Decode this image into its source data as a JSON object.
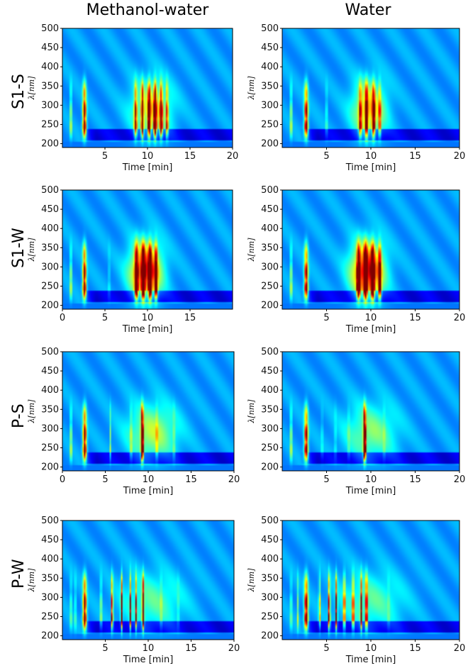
{
  "columns": [
    "Methanol-water",
    "Water"
  ],
  "rows": [
    "S1-S",
    "S1-W",
    "P-S",
    "P-W"
  ],
  "chart_data": [
    {
      "type": "heatmap",
      "row": "S1-S",
      "column": "Methanol-water",
      "xlabel": "Time [min]",
      "ylabel": "λ[nm]",
      "xticks": [
        "5",
        "10",
        "15",
        "20"
      ],
      "yticks": [
        "200",
        "250",
        "300",
        "350",
        "400",
        "450",
        "500"
      ],
      "xlim": [
        0,
        20
      ],
      "ylim": [
        190,
        500
      ],
      "peaks": [
        {
          "t": 1.0,
          "w": 0.06,
          "amp": 0.6
        },
        {
          "t": 2.6,
          "w": 0.15,
          "amp": 0.9
        },
        {
          "t": 8.6,
          "w": 0.12,
          "amp": 0.7
        },
        {
          "t": 9.4,
          "w": 0.1,
          "amp": 0.9
        },
        {
          "t": 10.2,
          "w": 0.12,
          "amp": 0.95
        },
        {
          "t": 10.9,
          "w": 0.12,
          "amp": 1.1
        },
        {
          "t": 11.6,
          "w": 0.12,
          "amp": 0.85
        },
        {
          "t": 12.3,
          "w": 0.1,
          "amp": 0.6
        }
      ],
      "hump": {
        "t": 10.5,
        "w": 1.6,
        "amp": 0.65
      }
    },
    {
      "type": "heatmap",
      "row": "S1-S",
      "column": "Water",
      "xlabel": "Time [min]",
      "ylabel": "λ[nm]",
      "xticks": [
        "5",
        "10",
        "15",
        "20"
      ],
      "yticks": [
        "200",
        "250",
        "300",
        "350",
        "400",
        "450",
        "500"
      ],
      "xlim": [
        0,
        20
      ],
      "ylim": [
        190,
        500
      ],
      "peaks": [
        {
          "t": 1.0,
          "w": 0.06,
          "amp": 0.6
        },
        {
          "t": 2.7,
          "w": 0.15,
          "amp": 0.85
        },
        {
          "t": 5.0,
          "w": 0.06,
          "amp": 0.3
        },
        {
          "t": 8.8,
          "w": 0.12,
          "amp": 0.6
        },
        {
          "t": 9.5,
          "w": 0.12,
          "amp": 0.85
        },
        {
          "t": 10.3,
          "w": 0.12,
          "amp": 0.8
        },
        {
          "t": 11.0,
          "w": 0.1,
          "amp": 0.5
        }
      ],
      "hump": {
        "t": 9.8,
        "w": 1.3,
        "amp": 0.75
      }
    },
    {
      "type": "heatmap",
      "row": "S1-W",
      "column": "Methanol-water",
      "xlabel": "Time [min]",
      "ylabel": "λ[nm]",
      "xticks": [
        "0",
        "5",
        "10",
        "15"
      ],
      "yticks": [
        "200",
        "250",
        "300",
        "350",
        "400",
        "450",
        "500"
      ],
      "xlim": [
        0,
        20
      ],
      "ylim": [
        190,
        500
      ],
      "peaks": [
        {
          "t": 1.0,
          "w": 0.06,
          "amp": 0.6
        },
        {
          "t": 2.6,
          "w": 0.15,
          "amp": 0.9
        },
        {
          "t": 5.5,
          "w": 0.05,
          "amp": 0.3
        },
        {
          "t": 8.7,
          "w": 0.14,
          "amp": 1.0
        },
        {
          "t": 9.5,
          "w": 0.14,
          "amp": 1.1
        },
        {
          "t": 10.3,
          "w": 0.14,
          "amp": 1.1
        },
        {
          "t": 11.0,
          "w": 0.12,
          "amp": 1.0
        }
      ],
      "hump": {
        "t": 9.8,
        "w": 1.3,
        "amp": 1.15
      }
    },
    {
      "type": "heatmap",
      "row": "S1-W",
      "column": "Water",
      "xlabel": "Time [min]",
      "ylabel": "λ[nm]",
      "xticks": [
        "5",
        "10",
        "15",
        "20"
      ],
      "yticks": [
        "200",
        "250",
        "300",
        "350",
        "400",
        "450",
        "500"
      ],
      "xlim": [
        0,
        20
      ],
      "ylim": [
        190,
        500
      ],
      "peaks": [
        {
          "t": 1.0,
          "w": 0.06,
          "amp": 0.6
        },
        {
          "t": 2.7,
          "w": 0.15,
          "amp": 0.85
        },
        {
          "t": 8.6,
          "w": 0.14,
          "amp": 1.0
        },
        {
          "t": 9.4,
          "w": 0.14,
          "amp": 1.1
        },
        {
          "t": 10.2,
          "w": 0.14,
          "amp": 1.1
        },
        {
          "t": 11.0,
          "w": 0.12,
          "amp": 0.9
        }
      ],
      "hump": {
        "t": 9.6,
        "w": 1.3,
        "amp": 1.2
      }
    },
    {
      "type": "heatmap",
      "row": "P-S",
      "column": "Methanol-water",
      "xlabel": "Time [min]",
      "ylabel": "λ[nm]",
      "xticks": [
        "0",
        "5",
        "10",
        "15",
        "20"
      ],
      "yticks": [
        "200",
        "250",
        "300",
        "350",
        "400",
        "450",
        "500"
      ],
      "xlim": [
        0,
        20
      ],
      "ylim": [
        190,
        500
      ],
      "peaks": [
        {
          "t": 1.0,
          "w": 0.06,
          "amp": 0.6
        },
        {
          "t": 2.6,
          "w": 0.15,
          "amp": 0.9
        },
        {
          "t": 5.6,
          "w": 0.05,
          "amp": 0.3
        },
        {
          "t": 8.0,
          "w": 0.06,
          "amp": 0.4
        },
        {
          "t": 9.3,
          "w": 0.1,
          "amp": 1.2
        },
        {
          "t": 11.0,
          "w": 0.06,
          "amp": 0.4
        },
        {
          "t": 13.0,
          "w": 0.06,
          "amp": 0.3
        }
      ],
      "hump": {
        "t": 10.5,
        "w": 2.0,
        "amp": 0.55
      }
    },
    {
      "type": "heatmap",
      "row": "P-S",
      "column": "Water",
      "xlabel": "Time [min]",
      "ylabel": "λ[nm]",
      "xticks": [
        "5",
        "10",
        "15",
        "20"
      ],
      "yticks": [
        "200",
        "250",
        "300",
        "350",
        "400",
        "450",
        "500"
      ],
      "xlim": [
        0,
        20
      ],
      "ylim": [
        190,
        500
      ],
      "peaks": [
        {
          "t": 1.0,
          "w": 0.06,
          "amp": 0.6
        },
        {
          "t": 2.7,
          "w": 0.15,
          "amp": 0.85
        },
        {
          "t": 4.5,
          "w": 0.05,
          "amp": 0.3
        },
        {
          "t": 6.0,
          "w": 0.05,
          "amp": 0.3
        },
        {
          "t": 7.5,
          "w": 0.05,
          "amp": 0.35
        },
        {
          "t": 9.3,
          "w": 0.1,
          "amp": 1.2
        },
        {
          "t": 11.5,
          "w": 0.05,
          "amp": 0.3
        }
      ],
      "hump": {
        "t": 10.0,
        "w": 2.0,
        "amp": 0.45
      }
    },
    {
      "type": "heatmap",
      "row": "P-W",
      "column": "Methanol-water",
      "xlabel": "Time [min]",
      "ylabel": "λ[nm]",
      "xticks": [
        "5",
        "10",
        "15",
        "20"
      ],
      "yticks": [
        "200",
        "250",
        "300",
        "350",
        "400",
        "450",
        "500"
      ],
      "xlim": [
        0,
        20
      ],
      "ylim": [
        190,
        500
      ],
      "peaks": [
        {
          "t": 1.0,
          "w": 0.05,
          "amp": 0.6
        },
        {
          "t": 1.5,
          "w": 0.05,
          "amp": 0.5
        },
        {
          "t": 2.6,
          "w": 0.15,
          "amp": 0.9
        },
        {
          "t": 4.5,
          "w": 0.06,
          "amp": 0.5
        },
        {
          "t": 5.8,
          "w": 0.07,
          "amp": 0.9
        },
        {
          "t": 6.9,
          "w": 0.07,
          "amp": 0.95
        },
        {
          "t": 7.9,
          "w": 0.06,
          "amp": 0.8
        },
        {
          "t": 8.6,
          "w": 0.06,
          "amp": 0.7
        },
        {
          "t": 9.4,
          "w": 0.08,
          "amp": 1.0
        },
        {
          "t": 11.5,
          "w": 0.05,
          "amp": 0.4
        },
        {
          "t": 13.5,
          "w": 0.05,
          "amp": 0.3
        }
      ],
      "hump": {
        "t": 10.5,
        "w": 2.5,
        "amp": 0.35
      }
    },
    {
      "type": "heatmap",
      "row": "P-W",
      "column": "Water",
      "xlabel": "Time [min]",
      "ylabel": "λ[nm]",
      "xticks": [
        "5",
        "10",
        "15",
        "20"
      ],
      "yticks": [
        "200",
        "250",
        "300",
        "350",
        "400",
        "450",
        "500"
      ],
      "xlim": [
        0,
        20
      ],
      "ylim": [
        190,
        500
      ],
      "peaks": [
        {
          "t": 1.0,
          "w": 0.05,
          "amp": 0.6
        },
        {
          "t": 1.8,
          "w": 0.05,
          "amp": 0.5
        },
        {
          "t": 2.7,
          "w": 0.15,
          "amp": 0.9
        },
        {
          "t": 4.2,
          "w": 0.06,
          "amp": 0.55
        },
        {
          "t": 5.3,
          "w": 0.07,
          "amp": 0.95
        },
        {
          "t": 6.1,
          "w": 0.07,
          "amp": 0.9
        },
        {
          "t": 7.0,
          "w": 0.07,
          "amp": 0.85
        },
        {
          "t": 8.0,
          "w": 0.07,
          "amp": 0.85
        },
        {
          "t": 8.9,
          "w": 0.07,
          "amp": 0.8
        },
        {
          "t": 9.5,
          "w": 0.08,
          "amp": 0.9
        },
        {
          "t": 12.0,
          "w": 0.05,
          "amp": 0.3
        }
      ],
      "hump": {
        "t": 10.0,
        "w": 2.5,
        "amp": 0.35
      }
    }
  ]
}
